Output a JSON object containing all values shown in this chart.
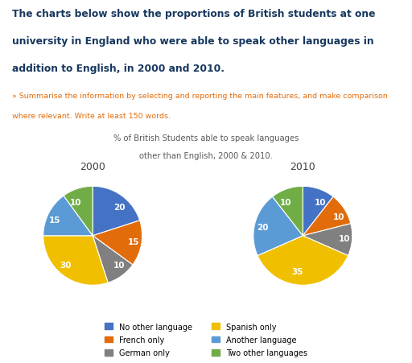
{
  "title_main_line1": "The charts below show the proportions of British students at one",
  "title_main_line2": "university in England who were able to speak other languages in",
  "title_main_line3": "addition to English, in 2000 and 2010.",
  "subtitle_line1": "» Summarise the information by selecting and reporting the main features, and make comparison",
  "subtitle_line2": "where relevant. Write at least 150 words.",
  "chart_title_line1": "% of British Students able to speak languages",
  "chart_title_line2": "other than English, 2000 & 2010.",
  "pie_title_2000": "2000",
  "pie_title_2010": "2010",
  "categories": [
    "No other language",
    "French only",
    "German only",
    "Spanish only",
    "Another language",
    "Two other languages"
  ],
  "colors": [
    "#4472C4",
    "#E36C0A",
    "#808080",
    "#F0C000",
    "#5B9BD5",
    "#70AD47"
  ],
  "values_2000": [
    20,
    15,
    10,
    30,
    15,
    10
  ],
  "values_2010": [
    10,
    10,
    10,
    35,
    20,
    10
  ],
  "labels_2000": [
    "20",
    "15",
    "10",
    "30",
    "15",
    "10"
  ],
  "labels_2010": [
    "10",
    "10",
    "10",
    "35",
    "20",
    "10"
  ],
  "startangle_2000": 90,
  "startangle_2010": 90,
  "main_title_color": "#17375E",
  "subtitle_color": "#E36C0A",
  "chart_title_color": "#595959",
  "background_color": "#FFFFFF"
}
